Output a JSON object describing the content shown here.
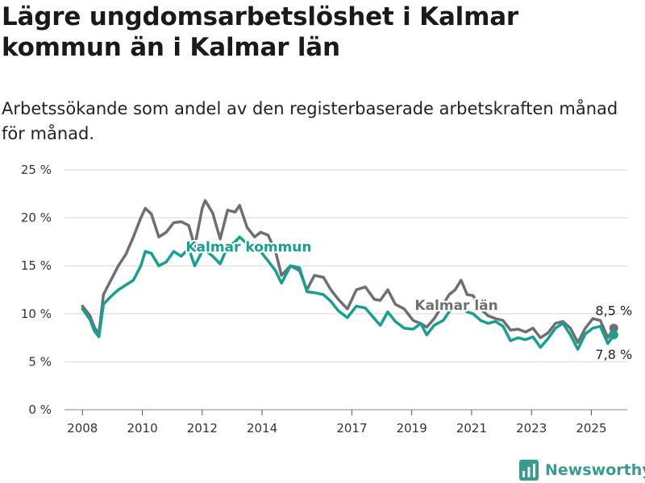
{
  "title": "Lägre ungdomsarbetslöshet i Kalmar kommun än i Kalmar län",
  "subtitle": "Arbetssökande som andel av den registerbaserade arbetskraften månad för månad.",
  "brand": "Newsworthy",
  "colors": {
    "kommun": "#16a092",
    "lan": "#6e6e73",
    "grid": "#d9d9d9",
    "axis": "#333333"
  },
  "chart_data": {
    "type": "line",
    "y_unit": "%",
    "ylim": [
      0,
      25
    ],
    "y_ticks": [
      0,
      5,
      10,
      15,
      20,
      25
    ],
    "y_tick_labels": [
      "0 %",
      "5 %",
      "10 %",
      "15 %",
      "20 %",
      "25 %"
    ],
    "xlim": [
      2007.4,
      2026.2
    ],
    "x_ticks": [
      2008,
      2010,
      2012,
      2014,
      2017,
      2019,
      2021,
      2023,
      2025
    ],
    "x_tick_labels": [
      "2008",
      "2010",
      "2012",
      "2014",
      "2017",
      "2019",
      "2021",
      "2023",
      "2025"
    ],
    "grid": "horizontal",
    "legend": "inline labels",
    "series": [
      {
        "name": "Kalmar län",
        "label_x": 2019.1,
        "label_y": 10.4,
        "end_label": "8,5 %",
        "points": [
          [
            2008.0,
            10.8
          ],
          [
            2008.25,
            9.8
          ],
          [
            2008.4,
            8.6
          ],
          [
            2008.55,
            7.9
          ],
          [
            2008.7,
            12.0
          ],
          [
            2008.95,
            13.5
          ],
          [
            2009.2,
            15.0
          ],
          [
            2009.45,
            16.2
          ],
          [
            2009.7,
            18.0
          ],
          [
            2009.95,
            20.0
          ],
          [
            2010.1,
            21.0
          ],
          [
            2010.3,
            20.4
          ],
          [
            2010.55,
            18.0
          ],
          [
            2010.8,
            18.5
          ],
          [
            2011.05,
            19.5
          ],
          [
            2011.3,
            19.6
          ],
          [
            2011.55,
            19.2
          ],
          [
            2011.75,
            17.0
          ],
          [
            2012.0,
            21.0
          ],
          [
            2012.1,
            21.8
          ],
          [
            2012.35,
            20.5
          ],
          [
            2012.6,
            17.8
          ],
          [
            2012.85,
            20.8
          ],
          [
            2013.1,
            20.6
          ],
          [
            2013.25,
            21.3
          ],
          [
            2013.5,
            19.0
          ],
          [
            2013.75,
            18.0
          ],
          [
            2013.95,
            18.5
          ],
          [
            2014.2,
            18.2
          ],
          [
            2014.45,
            16.5
          ],
          [
            2014.65,
            14.0
          ],
          [
            2014.95,
            15.0
          ],
          [
            2015.25,
            14.5
          ],
          [
            2015.5,
            12.5
          ],
          [
            2015.75,
            14.0
          ],
          [
            2016.05,
            13.8
          ],
          [
            2016.3,
            12.5
          ],
          [
            2016.55,
            11.5
          ],
          [
            2016.85,
            10.5
          ],
          [
            2017.15,
            12.5
          ],
          [
            2017.45,
            12.8
          ],
          [
            2017.75,
            11.5
          ],
          [
            2017.95,
            11.4
          ],
          [
            2018.2,
            12.5
          ],
          [
            2018.45,
            11.0
          ],
          [
            2018.75,
            10.5
          ],
          [
            2019.05,
            9.3
          ],
          [
            2019.3,
            9.0
          ],
          [
            2019.5,
            8.6
          ],
          [
            2019.75,
            9.5
          ],
          [
            2020.05,
            11.0
          ],
          [
            2020.25,
            12.0
          ],
          [
            2020.45,
            12.5
          ],
          [
            2020.65,
            13.5
          ],
          [
            2020.85,
            12.0
          ],
          [
            2021.05,
            11.9
          ],
          [
            2021.3,
            10.5
          ],
          [
            2021.55,
            9.8
          ],
          [
            2021.8,
            9.5
          ],
          [
            2022.05,
            9.3
          ],
          [
            2022.3,
            8.3
          ],
          [
            2022.55,
            8.4
          ],
          [
            2022.8,
            8.1
          ],
          [
            2023.05,
            8.5
          ],
          [
            2023.3,
            7.5
          ],
          [
            2023.55,
            8.0
          ],
          [
            2023.8,
            9.0
          ],
          [
            2024.05,
            9.2
          ],
          [
            2024.3,
            8.5
          ],
          [
            2024.55,
            7.0
          ],
          [
            2024.8,
            8.5
          ],
          [
            2025.05,
            9.5
          ],
          [
            2025.3,
            9.3
          ],
          [
            2025.55,
            7.5
          ],
          [
            2025.75,
            8.5
          ]
        ]
      },
      {
        "name": "Kalmar kommun",
        "label_x": 2011.45,
        "label_y": 16.5,
        "end_label": "7,8 %",
        "points": [
          [
            2008.0,
            10.5
          ],
          [
            2008.25,
            9.4
          ],
          [
            2008.4,
            8.2
          ],
          [
            2008.55,
            7.6
          ],
          [
            2008.7,
            11.0
          ],
          [
            2008.95,
            11.8
          ],
          [
            2009.2,
            12.5
          ],
          [
            2009.45,
            13.0
          ],
          [
            2009.7,
            13.5
          ],
          [
            2009.95,
            15.0
          ],
          [
            2010.1,
            16.5
          ],
          [
            2010.3,
            16.3
          ],
          [
            2010.55,
            15.0
          ],
          [
            2010.8,
            15.4
          ],
          [
            2011.05,
            16.5
          ],
          [
            2011.3,
            16.0
          ],
          [
            2011.55,
            16.8
          ],
          [
            2011.75,
            15.0
          ],
          [
            2012.0,
            16.5
          ],
          [
            2012.1,
            16.6
          ],
          [
            2012.35,
            16.0
          ],
          [
            2012.6,
            15.2
          ],
          [
            2012.85,
            17.0
          ],
          [
            2013.1,
            17.5
          ],
          [
            2013.25,
            18.0
          ],
          [
            2013.5,
            17.3
          ],
          [
            2013.75,
            16.8
          ],
          [
            2013.95,
            16.5
          ],
          [
            2014.2,
            15.5
          ],
          [
            2014.45,
            14.5
          ],
          [
            2014.65,
            13.2
          ],
          [
            2014.95,
            15.0
          ],
          [
            2015.25,
            14.8
          ],
          [
            2015.5,
            12.3
          ],
          [
            2015.75,
            12.2
          ],
          [
            2016.05,
            12.0
          ],
          [
            2016.3,
            11.3
          ],
          [
            2016.55,
            10.3
          ],
          [
            2016.85,
            9.6
          ],
          [
            2017.15,
            10.8
          ],
          [
            2017.45,
            10.6
          ],
          [
            2017.75,
            9.5
          ],
          [
            2017.95,
            8.8
          ],
          [
            2018.2,
            10.2
          ],
          [
            2018.45,
            9.2
          ],
          [
            2018.75,
            8.5
          ],
          [
            2019.05,
            8.4
          ],
          [
            2019.3,
            9.0
          ],
          [
            2019.5,
            7.8
          ],
          [
            2019.75,
            8.8
          ],
          [
            2020.05,
            9.3
          ],
          [
            2020.25,
            10.2
          ],
          [
            2020.45,
            10.8
          ],
          [
            2020.65,
            11.0
          ],
          [
            2020.85,
            10.2
          ],
          [
            2021.05,
            10.0
          ],
          [
            2021.3,
            9.3
          ],
          [
            2021.55,
            9.0
          ],
          [
            2021.8,
            9.2
          ],
          [
            2022.05,
            8.7
          ],
          [
            2022.3,
            7.2
          ],
          [
            2022.55,
            7.5
          ],
          [
            2022.8,
            7.3
          ],
          [
            2023.05,
            7.6
          ],
          [
            2023.3,
            6.5
          ],
          [
            2023.55,
            7.4
          ],
          [
            2023.8,
            8.5
          ],
          [
            2024.05,
            9.0
          ],
          [
            2024.3,
            7.8
          ],
          [
            2024.55,
            6.3
          ],
          [
            2024.8,
            7.9
          ],
          [
            2025.05,
            8.5
          ],
          [
            2025.3,
            8.7
          ],
          [
            2025.55,
            6.9
          ],
          [
            2025.75,
            7.8
          ]
        ]
      }
    ]
  }
}
